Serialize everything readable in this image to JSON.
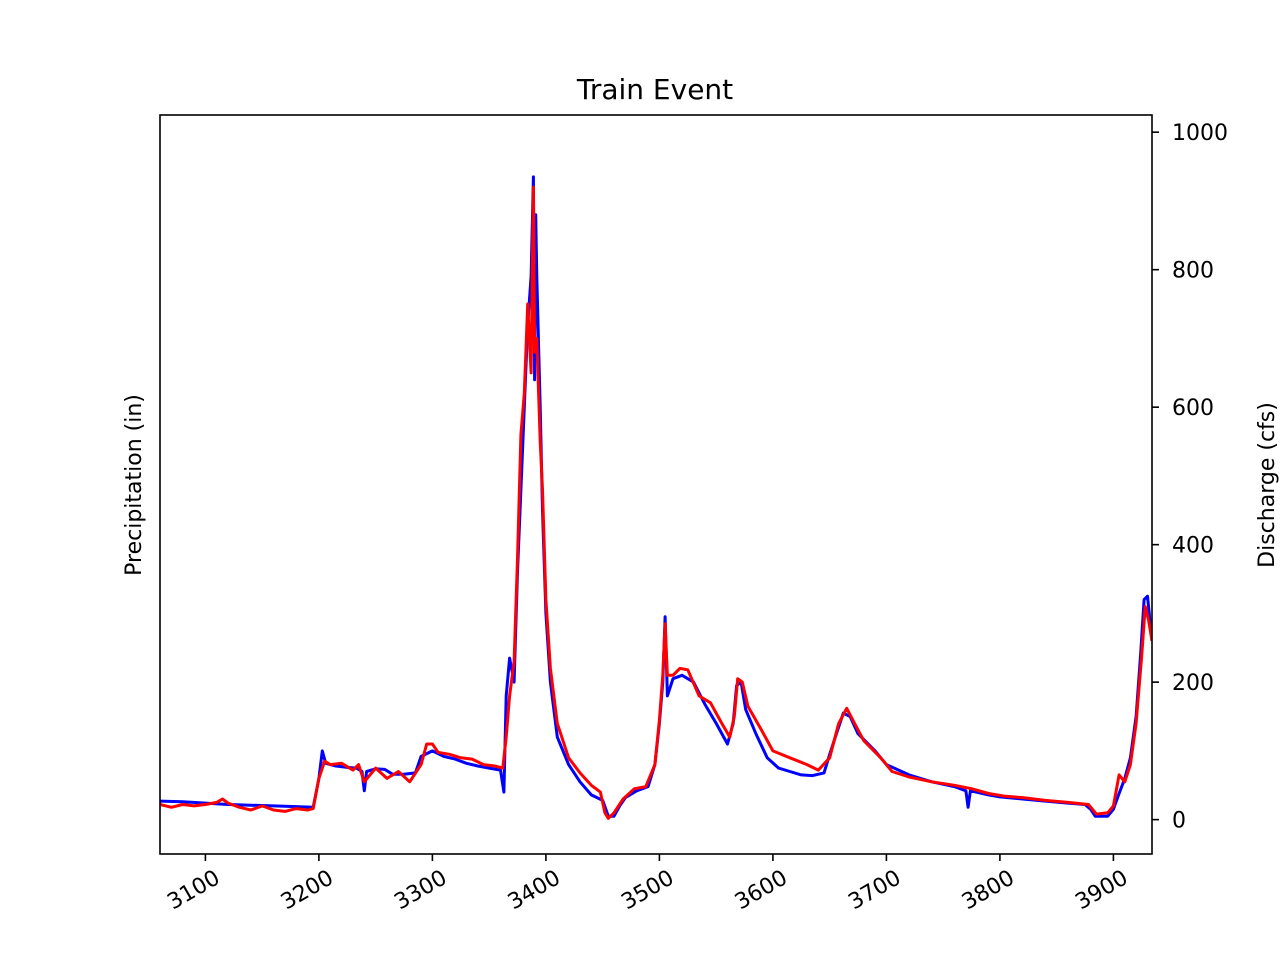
{
  "chart_data": {
    "type": "line",
    "title": "Train Event",
    "xlabel": "",
    "ylabel_left": "Precipitation (in)",
    "ylabel_right": "Discharge (cfs)",
    "xlim": [
      3060,
      3934
    ],
    "ylim_right": [
      -50,
      1025
    ],
    "x_ticks": [
      3100,
      3200,
      3300,
      3400,
      3500,
      3600,
      3700,
      3800,
      3900
    ],
    "y_ticks_right": [
      0,
      200,
      400,
      600,
      800,
      1000
    ],
    "grid": false,
    "series": [
      {
        "color": "#0000ff",
        "points": [
          [
            3060,
            27
          ],
          [
            3080,
            26
          ],
          [
            3100,
            24
          ],
          [
            3120,
            22
          ],
          [
            3140,
            21
          ],
          [
            3160,
            20
          ],
          [
            3180,
            19
          ],
          [
            3195,
            18
          ],
          [
            3200,
            60
          ],
          [
            3203,
            100
          ],
          [
            3206,
            82
          ],
          [
            3215,
            78
          ],
          [
            3225,
            76
          ],
          [
            3233,
            75
          ],
          [
            3238,
            70
          ],
          [
            3240,
            42
          ],
          [
            3242,
            70
          ],
          [
            3250,
            74
          ],
          [
            3258,
            73
          ],
          [
            3265,
            66
          ],
          [
            3275,
            66
          ],
          [
            3285,
            68
          ],
          [
            3290,
            92
          ],
          [
            3300,
            100
          ],
          [
            3310,
            92
          ],
          [
            3320,
            88
          ],
          [
            3330,
            82
          ],
          [
            3340,
            78
          ],
          [
            3350,
            75
          ],
          [
            3360,
            72
          ],
          [
            3363,
            40
          ],
          [
            3365,
            180
          ],
          [
            3368,
            235
          ],
          [
            3372,
            200
          ],
          [
            3375,
            360
          ],
          [
            3378,
            480
          ],
          [
            3381,
            600
          ],
          [
            3384,
            720
          ],
          [
            3387,
            790
          ],
          [
            3389,
            935
          ],
          [
            3390,
            640
          ],
          [
            3391,
            880
          ],
          [
            3392,
            790
          ],
          [
            3395,
            600
          ],
          [
            3397,
            450
          ],
          [
            3400,
            300
          ],
          [
            3404,
            200
          ],
          [
            3410,
            120
          ],
          [
            3420,
            80
          ],
          [
            3430,
            55
          ],
          [
            3440,
            36
          ],
          [
            3450,
            28
          ],
          [
            3455,
            5
          ],
          [
            3460,
            5
          ],
          [
            3465,
            20
          ],
          [
            3470,
            32
          ],
          [
            3480,
            42
          ],
          [
            3490,
            48
          ],
          [
            3496,
            80
          ],
          [
            3500,
            140
          ],
          [
            3503,
            200
          ],
          [
            3505,
            295
          ],
          [
            3507,
            180
          ],
          [
            3512,
            205
          ],
          [
            3520,
            210
          ],
          [
            3530,
            200
          ],
          [
            3540,
            168
          ],
          [
            3550,
            140
          ],
          [
            3560,
            110
          ],
          [
            3565,
            140
          ],
          [
            3568,
            195
          ],
          [
            3572,
            200
          ],
          [
            3576,
            160
          ],
          [
            3585,
            125
          ],
          [
            3595,
            90
          ],
          [
            3605,
            75
          ],
          [
            3615,
            70
          ],
          [
            3625,
            65
          ],
          [
            3635,
            64
          ],
          [
            3645,
            68
          ],
          [
            3650,
            95
          ],
          [
            3655,
            120
          ],
          [
            3662,
            155
          ],
          [
            3668,
            150
          ],
          [
            3675,
            125
          ],
          [
            3690,
            100
          ],
          [
            3700,
            80
          ],
          [
            3720,
            65
          ],
          [
            3740,
            55
          ],
          [
            3760,
            48
          ],
          [
            3770,
            42
          ],
          [
            3772,
            18
          ],
          [
            3774,
            42
          ],
          [
            3790,
            36
          ],
          [
            3800,
            33
          ],
          [
            3820,
            30
          ],
          [
            3840,
            27
          ],
          [
            3860,
            24
          ],
          [
            3875,
            22
          ],
          [
            3880,
            15
          ],
          [
            3884,
            5
          ],
          [
            3895,
            5
          ],
          [
            3900,
            15
          ],
          [
            3905,
            38
          ],
          [
            3910,
            60
          ],
          [
            3915,
            90
          ],
          [
            3920,
            150
          ],
          [
            3924,
            240
          ],
          [
            3927,
            320
          ],
          [
            3930,
            325
          ],
          [
            3934,
            260
          ]
        ]
      },
      {
        "color": "#ff0000",
        "points": [
          [
            3060,
            22
          ],
          [
            3070,
            18
          ],
          [
            3080,
            22
          ],
          [
            3090,
            20
          ],
          [
            3100,
            22
          ],
          [
            3110,
            25
          ],
          [
            3115,
            30
          ],
          [
            3120,
            24
          ],
          [
            3130,
            18
          ],
          [
            3140,
            14
          ],
          [
            3150,
            20
          ],
          [
            3160,
            14
          ],
          [
            3170,
            12
          ],
          [
            3180,
            16
          ],
          [
            3190,
            14
          ],
          [
            3195,
            16
          ],
          [
            3200,
            60
          ],
          [
            3205,
            85
          ],
          [
            3210,
            80
          ],
          [
            3220,
            82
          ],
          [
            3230,
            72
          ],
          [
            3235,
            80
          ],
          [
            3240,
            55
          ],
          [
            3250,
            75
          ],
          [
            3260,
            60
          ],
          [
            3270,
            70
          ],
          [
            3280,
            55
          ],
          [
            3290,
            80
          ],
          [
            3295,
            110
          ],
          [
            3300,
            110
          ],
          [
            3305,
            98
          ],
          [
            3315,
            95
          ],
          [
            3325,
            90
          ],
          [
            3335,
            88
          ],
          [
            3345,
            80
          ],
          [
            3355,
            78
          ],
          [
            3362,
            75
          ],
          [
            3365,
            120
          ],
          [
            3368,
            180
          ],
          [
            3372,
            230
          ],
          [
            3375,
            380
          ],
          [
            3378,
            560
          ],
          [
            3381,
            620
          ],
          [
            3384,
            750
          ],
          [
            3387,
            650
          ],
          [
            3389,
            920
          ],
          [
            3390,
            680
          ],
          [
            3392,
            700
          ],
          [
            3395,
            550
          ],
          [
            3397,
            480
          ],
          [
            3400,
            320
          ],
          [
            3404,
            220
          ],
          [
            3410,
            140
          ],
          [
            3420,
            90
          ],
          [
            3430,
            68
          ],
          [
            3440,
            50
          ],
          [
            3448,
            40
          ],
          [
            3452,
            10
          ],
          [
            3455,
            2
          ],
          [
            3460,
            10
          ],
          [
            3468,
            30
          ],
          [
            3478,
            45
          ],
          [
            3488,
            48
          ],
          [
            3496,
            80
          ],
          [
            3500,
            145
          ],
          [
            3503,
            210
          ],
          [
            3505,
            285
          ],
          [
            3507,
            210
          ],
          [
            3512,
            210
          ],
          [
            3518,
            220
          ],
          [
            3525,
            218
          ],
          [
            3535,
            180
          ],
          [
            3545,
            170
          ],
          [
            3555,
            140
          ],
          [
            3562,
            120
          ],
          [
            3566,
            150
          ],
          [
            3569,
            205
          ],
          [
            3573,
            200
          ],
          [
            3578,
            165
          ],
          [
            3590,
            130
          ],
          [
            3600,
            100
          ],
          [
            3615,
            90
          ],
          [
            3630,
            80
          ],
          [
            3640,
            72
          ],
          [
            3650,
            90
          ],
          [
            3658,
            140
          ],
          [
            3665,
            162
          ],
          [
            3672,
            140
          ],
          [
            3680,
            115
          ],
          [
            3695,
            90
          ],
          [
            3705,
            70
          ],
          [
            3720,
            62
          ],
          [
            3740,
            55
          ],
          [
            3760,
            50
          ],
          [
            3775,
            45
          ],
          [
            3790,
            38
          ],
          [
            3805,
            34
          ],
          [
            3820,
            32
          ],
          [
            3840,
            28
          ],
          [
            3860,
            25
          ],
          [
            3878,
            22
          ],
          [
            3885,
            8
          ],
          [
            3895,
            10
          ],
          [
            3900,
            20
          ],
          [
            3905,
            65
          ],
          [
            3910,
            55
          ],
          [
            3915,
            80
          ],
          [
            3920,
            140
          ],
          [
            3925,
            240
          ],
          [
            3928,
            310
          ],
          [
            3931,
            290
          ],
          [
            3934,
            260
          ]
        ]
      }
    ]
  }
}
